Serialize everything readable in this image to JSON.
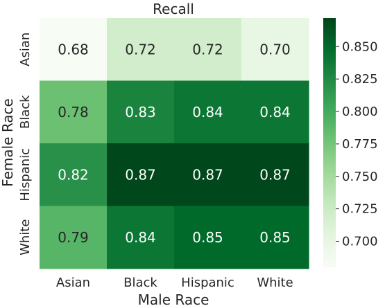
{
  "chart_data": {
    "type": "heatmap",
    "title": "Recall",
    "xlabel": "Male Race",
    "ylabel": "Female Race",
    "x_categories": [
      "Asian",
      "Black",
      "Hispanic",
      "White"
    ],
    "y_categories": [
      "Asian",
      "Black",
      "Hispanic",
      "White"
    ],
    "values": [
      [
        0.68,
        0.72,
        0.72,
        0.7
      ],
      [
        0.78,
        0.83,
        0.84,
        0.84
      ],
      [
        0.82,
        0.87,
        0.87,
        0.87
      ],
      [
        0.79,
        0.84,
        0.85,
        0.85
      ]
    ],
    "cell_labels": [
      [
        "0.68",
        "0.72",
        "0.72",
        "0.70"
      ],
      [
        "0.78",
        "0.83",
        "0.84",
        "0.84"
      ],
      [
        "0.82",
        "0.87",
        "0.87",
        "0.87"
      ],
      [
        "0.79",
        "0.84",
        "0.85",
        "0.85"
      ]
    ],
    "colormap": "Greens",
    "color_range": [
      0.68,
      0.872
    ],
    "colorbar_ticks": [
      0.7,
      0.725,
      0.75,
      0.775,
      0.8,
      0.825,
      0.85
    ],
    "colorbar_tick_labels": [
      "0.700",
      "0.725",
      "0.750",
      "0.775",
      "0.800",
      "0.825",
      "0.850"
    ],
    "colors": {
      "low": "#f7fcf5",
      "high": "#00441b",
      "text_dark": "#262626",
      "text_light": "#ffffff"
    }
  }
}
